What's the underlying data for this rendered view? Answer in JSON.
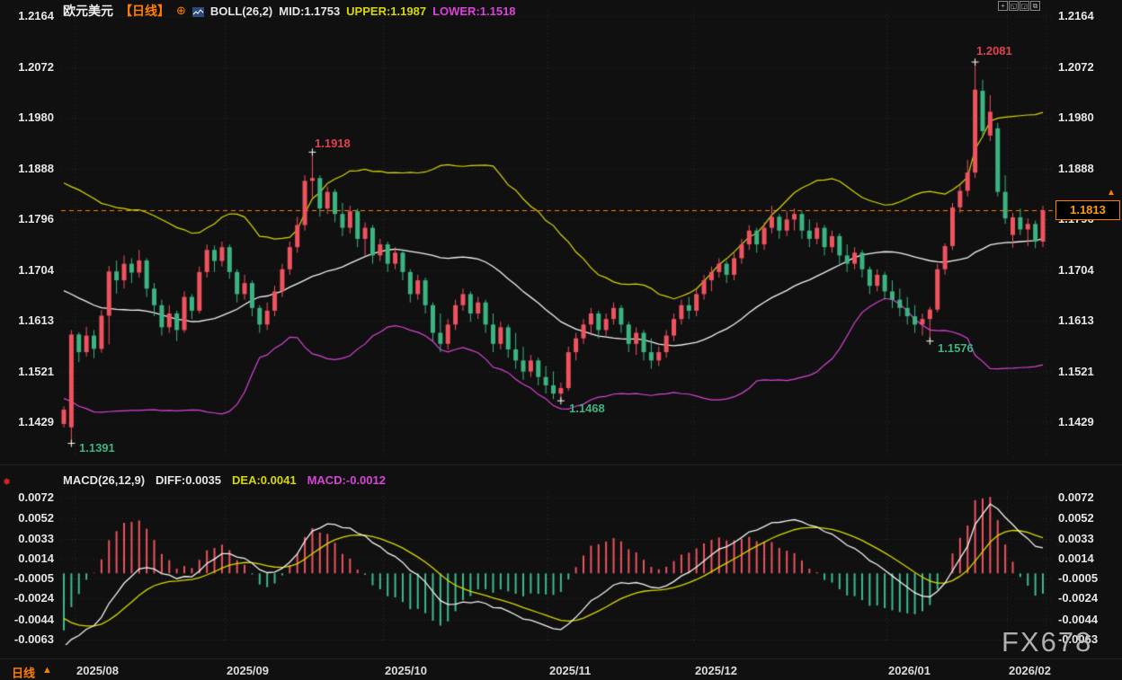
{
  "header": {
    "symbol": "欧元美元",
    "period_tag": "【日线】",
    "plus_glyph": "⊕",
    "boll_label": "BOLL(26,2)",
    "boll_mid": "MID:1.1753",
    "boll_upper": "UPPER:1.1987",
    "boll_lower": "LOWER:1.1518"
  },
  "macd_header": {
    "label": "MACD(26,12,9)",
    "diff": "DIFF:0.0035",
    "dea": "DEA:0.0041",
    "macd": "MACD:-0.0012"
  },
  "axes": {
    "price": [
      "1.2164",
      "1.2072",
      "1.1980",
      "1.1888",
      "1.1796",
      "1.1704",
      "1.1613",
      "1.1521",
      "1.1429"
    ],
    "macd": [
      "0.0072",
      "0.0052",
      "0.0033",
      "0.0014",
      "-0.0005",
      "-0.0024",
      "-0.0044",
      "-0.0063"
    ],
    "dates": [
      "2025/08",
      "2025/09",
      "2025/10",
      "2025/11",
      "2025/12",
      "2026/01",
      "2026/02"
    ]
  },
  "price_badge": {
    "value": "1.1813",
    "arrow": "▲"
  },
  "annotations": {
    "high": "1.2081",
    "swing_high": "1.1918",
    "jan_low": "1.1576",
    "nov_low": "1.1468",
    "aug_low": "1.1391"
  },
  "footer": {
    "period": "日线",
    "arrow": "▲"
  },
  "watermark": {
    "text": "FX678"
  },
  "indicator_dot": {
    "glyph": "✹"
  },
  "toolbar": {
    "icons": [
      {
        "name": "crosshair-icon",
        "glyph": "+"
      },
      {
        "name": "layout-left-icon",
        "glyph": "◱"
      },
      {
        "name": "layout-right-icon",
        "glyph": "◲"
      },
      {
        "name": "new-window-icon",
        "glyph": "⧉"
      }
    ]
  },
  "colors": {
    "background": "#101010",
    "up": "#ef535f",
    "down": "#3cb482",
    "hist_up": "#ef535f",
    "hist_down": "#3cbc8c",
    "boll_mid": "#f2f2f2",
    "boll_upper": "#d8d800",
    "boll_lower": "#d943d9",
    "macd_diff": "#f2f2f2",
    "macd_dea": "#d8d800",
    "accent_orange": "#ff7e00",
    "annotation_red": "#e0404f",
    "annotation_green": "#3cb482",
    "axis_text": "#e6e6e6",
    "grid": "#2e2e2e",
    "watermark": "#bdbdbd"
  },
  "chart_data": {
    "type": "candlestick",
    "title": "欧元美元 日线 (EUR/USD Daily) with BOLL(26,2) and MACD(26,12,9)",
    "legend_position": "top-left",
    "grid": "dotted",
    "price_ticks": [
      1.2164,
      1.2072,
      1.198,
      1.1888,
      1.1796,
      1.1704,
      1.1613,
      1.1521,
      1.1429
    ],
    "macd_ticks": [
      0.0072,
      0.0052,
      0.0033,
      0.0014,
      -0.0005,
      -0.0024,
      -0.0044,
      -0.0063
    ],
    "dates": [
      "2025/08",
      "2025/09",
      "2025/10",
      "2025/11",
      "2025/12",
      "2026/01",
      "2026/02"
    ],
    "month_start_indices": [
      4,
      24,
      45,
      67,
      86,
      111,
      127
    ],
    "last_price": 1.1813,
    "boll": {
      "period": 26,
      "dev": 2,
      "mid": 1.1753,
      "upper": 1.1987,
      "lower": 1.1518
    },
    "macd": {
      "fast": 12,
      "slow": 26,
      "signal": 9,
      "diff": 0.0035,
      "dea": 0.0041,
      "hist": -0.0012
    },
    "extremes": {
      "high": 1.2081,
      "low": 1.1391,
      "swing_high": 1.1918,
      "swing_lows": [
        1.1468,
        1.1576
      ]
    },
    "markers": [
      {
        "i": 1,
        "side": "low"
      },
      {
        "i": 33,
        "side": "high"
      },
      {
        "i": 66,
        "side": "low"
      },
      {
        "i": 115,
        "side": "low"
      },
      {
        "i": 121,
        "side": "high"
      }
    ],
    "pre_closes": [
      1.175,
      1.1745,
      1.1752,
      1.1748,
      1.174,
      1.1745,
      1.1738,
      1.1742,
      1.1735,
      1.1728,
      1.1732,
      1.1725,
      1.1718,
      1.1722,
      1.1715,
      1.1708,
      1.1712,
      1.1705,
      1.1698,
      1.1702,
      1.169,
      1.1675,
      1.165,
      1.161,
      1.156,
      1.1505,
      1.146,
      1.143
    ],
    "candles": [
      [
        1.1426,
        1.1458,
        1.142,
        1.1452
      ],
      [
        1.142,
        1.1596,
        1.1391,
        1.1588
      ],
      [
        1.1588,
        1.1592,
        1.1538,
        1.1556
      ],
      [
        1.1556,
        1.1602,
        1.1548,
        1.1586
      ],
      [
        1.1586,
        1.1596,
        1.1545,
        1.1562
      ],
      [
        1.1562,
        1.1632,
        1.1555,
        1.1622
      ],
      [
        1.1622,
        1.1712,
        1.157,
        1.1702
      ],
      [
        1.1702,
        1.1722,
        1.1662,
        1.1686
      ],
      [
        1.1686,
        1.1731,
        1.1671,
        1.1716
      ],
      [
        1.1716,
        1.1726,
        1.1681,
        1.17
      ],
      [
        1.17,
        1.1741,
        1.1691,
        1.1722
      ],
      [
        1.1722,
        1.1726,
        1.1656,
        1.1671
      ],
      [
        1.1671,
        1.1681,
        1.1621,
        1.1641
      ],
      [
        1.1641,
        1.1651,
        1.1586,
        1.1601
      ],
      [
        1.1601,
        1.1641,
        1.1591,
        1.1626
      ],
      [
        1.1626,
        1.1631,
        1.1576,
        1.1596
      ],
      [
        1.1596,
        1.1666,
        1.1591,
        1.1656
      ],
      [
        1.1656,
        1.1661,
        1.1616,
        1.1631
      ],
      [
        1.1631,
        1.1711,
        1.1626,
        1.1701
      ],
      [
        1.1701,
        1.1751,
        1.1691,
        1.1741
      ],
      [
        1.1741,
        1.1749,
        1.1701,
        1.1721
      ],
      [
        1.1721,
        1.1756,
        1.1711,
        1.1746
      ],
      [
        1.1746,
        1.1751,
        1.1689,
        1.1701
      ],
      [
        1.1701,
        1.1706,
        1.1646,
        1.1661
      ],
      [
        1.1661,
        1.1696,
        1.1651,
        1.1681
      ],
      [
        1.1681,
        1.1686,
        1.1621,
        1.1636
      ],
      [
        1.1636,
        1.1641,
        1.1591,
        1.1606
      ],
      [
        1.1606,
        1.1646,
        1.1596,
        1.1631
      ],
      [
        1.1631,
        1.1676,
        1.1621,
        1.1666
      ],
      [
        1.1666,
        1.1716,
        1.1656,
        1.1706
      ],
      [
        1.1706,
        1.1756,
        1.1696,
        1.1746
      ],
      [
        1.1746,
        1.1801,
        1.1736,
        1.1786
      ],
      [
        1.1786,
        1.1876,
        1.1776,
        1.1866
      ],
      [
        1.1866,
        1.1918,
        1.1836,
        1.1871
      ],
      [
        1.1871,
        1.1876,
        1.1801,
        1.1816
      ],
      [
        1.1816,
        1.1856,
        1.1806,
        1.1846
      ],
      [
        1.1846,
        1.1851,
        1.1791,
        1.1806
      ],
      [
        1.1806,
        1.1826,
        1.1766,
        1.1781
      ],
      [
        1.1781,
        1.1821,
        1.1771,
        1.1811
      ],
      [
        1.1811,
        1.1816,
        1.1746,
        1.1761
      ],
      [
        1.1761,
        1.1791,
        1.1731,
        1.1781
      ],
      [
        1.1781,
        1.1786,
        1.1716,
        1.1731
      ],
      [
        1.1731,
        1.1761,
        1.1721,
        1.1751
      ],
      [
        1.1751,
        1.1756,
        1.1701,
        1.1716
      ],
      [
        1.1716,
        1.1746,
        1.1706,
        1.1736
      ],
      [
        1.1736,
        1.1741,
        1.1686,
        1.1701
      ],
      [
        1.1701,
        1.1706,
        1.1646,
        1.1661
      ],
      [
        1.1661,
        1.1696,
        1.1651,
        1.1686
      ],
      [
        1.1686,
        1.1691,
        1.1626,
        1.1641
      ],
      [
        1.1641,
        1.1646,
        1.1576,
        1.1591
      ],
      [
        1.1591,
        1.1626,
        1.1556,
        1.1571
      ],
      [
        1.1571,
        1.1616,
        1.1561,
        1.1606
      ],
      [
        1.1606,
        1.1651,
        1.1596,
        1.1641
      ],
      [
        1.1641,
        1.1671,
        1.1631,
        1.1661
      ],
      [
        1.1661,
        1.1666,
        1.1611,
        1.1626
      ],
      [
        1.1626,
        1.1656,
        1.1616,
        1.1646
      ],
      [
        1.1646,
        1.1651,
        1.1591,
        1.1606
      ],
      [
        1.1606,
        1.1626,
        1.1556,
        1.1571
      ],
      [
        1.1571,
        1.1611,
        1.1561,
        1.1601
      ],
      [
        1.1601,
        1.1606,
        1.1546,
        1.1561
      ],
      [
        1.1561,
        1.1591,
        1.1526,
        1.1541
      ],
      [
        1.1541,
        1.1566,
        1.1506,
        1.1521
      ],
      [
        1.1521,
        1.1551,
        1.1511,
        1.1541
      ],
      [
        1.1541,
        1.1546,
        1.1496,
        1.1511
      ],
      [
        1.1511,
        1.1531,
        1.1481,
        1.1496
      ],
      [
        1.1496,
        1.1521,
        1.1471,
        1.1481
      ],
      [
        1.1481,
        1.1501,
        1.1468,
        1.1491
      ],
      [
        1.1491,
        1.1566,
        1.1486,
        1.1556
      ],
      [
        1.1556,
        1.1591,
        1.1541,
        1.1581
      ],
      [
        1.1581,
        1.1616,
        1.1571,
        1.1606
      ],
      [
        1.1606,
        1.1636,
        1.1586,
        1.1626
      ],
      [
        1.1626,
        1.1631,
        1.1581,
        1.1596
      ],
      [
        1.1596,
        1.1626,
        1.1586,
        1.1616
      ],
      [
        1.1616,
        1.1646,
        1.1606,
        1.1636
      ],
      [
        1.1636,
        1.1641,
        1.1591,
        1.1606
      ],
      [
        1.1606,
        1.1611,
        1.1556,
        1.1571
      ],
      [
        1.1571,
        1.1601,
        1.1551,
        1.1591
      ],
      [
        1.1591,
        1.1596,
        1.1541,
        1.1556
      ],
      [
        1.1556,
        1.1581,
        1.1526,
        1.1541
      ],
      [
        1.1541,
        1.1566,
        1.1531,
        1.1556
      ],
      [
        1.1556,
        1.1596,
        1.1546,
        1.1586
      ],
      [
        1.1586,
        1.1626,
        1.1576,
        1.1616
      ],
      [
        1.1616,
        1.1651,
        1.1606,
        1.1641
      ],
      [
        1.1641,
        1.1656,
        1.1616,
        1.1631
      ],
      [
        1.1631,
        1.1671,
        1.1621,
        1.1661
      ],
      [
        1.1661,
        1.1696,
        1.1651,
        1.1686
      ],
      [
        1.1686,
        1.1711,
        1.1666,
        1.1701
      ],
      [
        1.1701,
        1.1726,
        1.1691,
        1.1716
      ],
      [
        1.1716,
        1.1721,
        1.1681,
        1.1696
      ],
      [
        1.1696,
        1.1736,
        1.1686,
        1.1726
      ],
      [
        1.1726,
        1.1761,
        1.1716,
        1.1751
      ],
      [
        1.1751,
        1.1786,
        1.1741,
        1.1776
      ],
      [
        1.1776,
        1.1781,
        1.1736,
        1.1751
      ],
      [
        1.1751,
        1.1791,
        1.1741,
        1.1781
      ],
      [
        1.1781,
        1.1821,
        1.1771,
        1.1801
      ],
      [
        1.1801,
        1.1806,
        1.1761,
        1.1776
      ],
      [
        1.1776,
        1.1811,
        1.1766,
        1.1796
      ],
      [
        1.1796,
        1.1816,
        1.1776,
        1.1806
      ],
      [
        1.1806,
        1.1811,
        1.1761,
        1.1776
      ],
      [
        1.1776,
        1.1796,
        1.1746,
        1.1761
      ],
      [
        1.1761,
        1.1791,
        1.1751,
        1.1781
      ],
      [
        1.1781,
        1.1786,
        1.1731,
        1.1746
      ],
      [
        1.1746,
        1.1776,
        1.1736,
        1.1766
      ],
      [
        1.1766,
        1.1771,
        1.1716,
        1.1731
      ],
      [
        1.1731,
        1.1751,
        1.1701,
        1.1716
      ],
      [
        1.1716,
        1.1746,
        1.1706,
        1.1736
      ],
      [
        1.1736,
        1.1741,
        1.1691,
        1.1706
      ],
      [
        1.1706,
        1.1711,
        1.1661,
        1.1676
      ],
      [
        1.1676,
        1.1706,
        1.1666,
        1.1696
      ],
      [
        1.1696,
        1.1701,
        1.1651,
        1.1666
      ],
      [
        1.1666,
        1.1686,
        1.1636,
        1.1651
      ],
      [
        1.1651,
        1.1671,
        1.1621,
        1.1636
      ],
      [
        1.1636,
        1.1656,
        1.1606,
        1.1621
      ],
      [
        1.1621,
        1.1641,
        1.1591,
        1.1606
      ],
      [
        1.1606,
        1.1626,
        1.1586,
        1.1616
      ],
      [
        1.1616,
        1.1638,
        1.1576,
        1.1633
      ],
      [
        1.1633,
        1.1716,
        1.1628,
        1.1706
      ],
      [
        1.1706,
        1.1753,
        1.1696,
        1.1748
      ],
      [
        1.1748,
        1.1826,
        1.1741,
        1.1818
      ],
      [
        1.1818,
        1.1858,
        1.1808,
        1.1848
      ],
      [
        1.1848,
        1.1904,
        1.1838,
        1.1881
      ],
      [
        1.1881,
        1.2081,
        1.1871,
        1.2031
      ],
      [
        1.2029,
        1.2049,
        1.1944,
        1.1956
      ],
      [
        1.1948,
        1.2021,
        1.1938,
        1.1991
      ],
      [
        1.1961,
        1.1971,
        1.1838,
        1.1846
      ],
      [
        1.1846,
        1.1876,
        1.1788,
        1.1798
      ],
      [
        1.1768,
        1.1808,
        1.1745,
        1.18
      ],
      [
        1.18,
        1.1816,
        1.1768,
        1.1778
      ],
      [
        1.1778,
        1.1798,
        1.1748,
        1.1788
      ],
      [
        1.1788,
        1.1794,
        1.1744,
        1.1756
      ],
      [
        1.1756,
        1.1821,
        1.1746,
        1.1813
      ]
    ]
  }
}
